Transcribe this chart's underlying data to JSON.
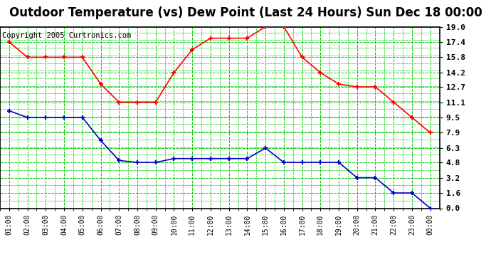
{
  "title": "Outdoor Temperature (vs) Dew Point (Last 24 Hours) Sun Dec 18 00:00",
  "copyright": "Copyright 2005 Curtronics.com",
  "x_labels": [
    "01:00",
    "02:00",
    "03:00",
    "04:00",
    "05:00",
    "06:00",
    "07:00",
    "08:00",
    "09:00",
    "10:00",
    "11:00",
    "12:00",
    "13:00",
    "14:00",
    "15:00",
    "16:00",
    "17:00",
    "18:00",
    "19:00",
    "20:00",
    "21:00",
    "22:00",
    "23:00",
    "00:00"
  ],
  "temp_data": [
    17.4,
    15.8,
    15.8,
    15.8,
    15.8,
    13.0,
    11.1,
    11.1,
    11.1,
    14.2,
    16.6,
    17.8,
    17.8,
    17.8,
    19.0,
    19.0,
    15.8,
    14.2,
    13.0,
    12.7,
    12.7,
    11.1,
    9.5,
    7.9
  ],
  "dew_data": [
    10.2,
    9.5,
    9.5,
    9.5,
    9.5,
    7.1,
    5.0,
    4.8,
    4.8,
    5.2,
    5.2,
    5.2,
    5.2,
    5.2,
    6.3,
    4.8,
    4.8,
    4.8,
    4.8,
    3.2,
    3.2,
    1.6,
    1.6,
    0.0
  ],
  "temp_color": "#ff0000",
  "dew_color": "#0000cc",
  "bg_color": "#ffffff",
  "plot_bg": "#ffffff",
  "grid_major_color": "#00cc00",
  "grid_minor_color": "#00cc00",
  "border_color": "#000000",
  "yticks": [
    0.0,
    1.6,
    3.2,
    4.8,
    6.3,
    7.9,
    9.5,
    11.1,
    12.7,
    14.2,
    15.8,
    17.4,
    19.0
  ],
  "ymin": 0.0,
  "ymax": 19.0,
  "title_fontsize": 12,
  "copyright_fontsize": 7.5
}
